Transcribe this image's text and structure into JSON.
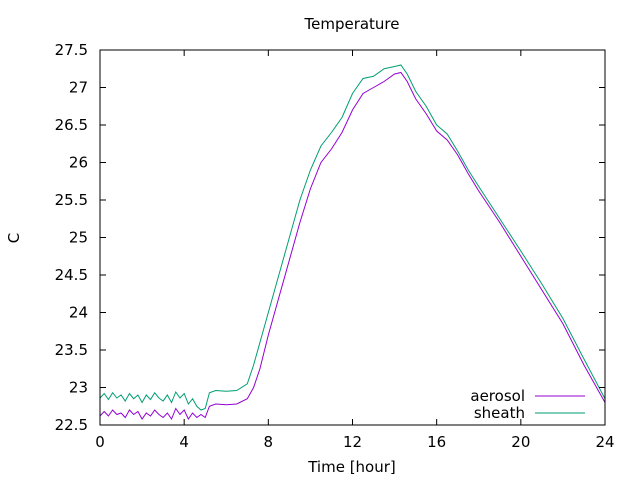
{
  "chart_data": {
    "type": "line",
    "title": "Temperature",
    "xlabel": "Time [hour]",
    "ylabel": "C",
    "xlim": [
      0,
      24
    ],
    "ylim": [
      22.5,
      27.5
    ],
    "xticks": [
      0,
      4,
      8,
      12,
      16,
      20,
      24
    ],
    "yticks": [
      22.5,
      23,
      23.5,
      24,
      24.5,
      25,
      25.5,
      26,
      26.5,
      27,
      27.5
    ],
    "xtick_labels": [
      "0",
      "4",
      "8",
      "12",
      "16",
      "20",
      "24"
    ],
    "ytick_labels": [
      "22.5",
      "23",
      "23.5",
      "24",
      "24.5",
      "25",
      "25.5",
      "26",
      "26.5",
      "27",
      "27.5"
    ],
    "grid": false,
    "legend": "bottom-right",
    "series": [
      {
        "name": "aerosol",
        "color": "#9400d3",
        "x": [
          0,
          0.2,
          0.4,
          0.6,
          0.8,
          1,
          1.2,
          1.4,
          1.6,
          1.8,
          2,
          2.2,
          2.4,
          2.6,
          2.8,
          3,
          3.2,
          3.4,
          3.6,
          3.8,
          4,
          4.2,
          4.4,
          4.6,
          4.8,
          5,
          5.2,
          5.5,
          6,
          6.5,
          7,
          7.3,
          7.6,
          8,
          8.5,
          9,
          9.5,
          10,
          10.5,
          11,
          11.5,
          12,
          12.5,
          13,
          13.5,
          14,
          14.3,
          14.6,
          15,
          15.5,
          16,
          16.5,
          17,
          17.5,
          18,
          19,
          20,
          21,
          22,
          23,
          24
        ],
        "y": [
          22.62,
          22.68,
          22.62,
          22.7,
          22.64,
          22.66,
          22.6,
          22.7,
          22.64,
          22.68,
          22.58,
          22.66,
          22.62,
          22.7,
          22.64,
          22.6,
          22.66,
          22.58,
          22.72,
          22.64,
          22.7,
          22.58,
          22.66,
          22.6,
          22.64,
          22.6,
          22.75,
          22.78,
          22.77,
          22.78,
          22.85,
          23.0,
          23.25,
          23.7,
          24.2,
          24.7,
          25.2,
          25.65,
          26.0,
          26.18,
          26.4,
          26.7,
          26.92,
          27.0,
          27.08,
          27.18,
          27.2,
          27.08,
          26.85,
          26.65,
          26.42,
          26.3,
          26.1,
          25.85,
          25.62,
          25.2,
          24.75,
          24.3,
          23.85,
          23.3,
          22.8
        ]
      },
      {
        "name": "sheath",
        "color": "#009e73",
        "x": [
          0,
          0.2,
          0.4,
          0.6,
          0.8,
          1,
          1.2,
          1.4,
          1.6,
          1.8,
          2,
          2.2,
          2.4,
          2.6,
          2.8,
          3,
          3.2,
          3.4,
          3.6,
          3.8,
          4,
          4.2,
          4.4,
          4.6,
          4.8,
          5,
          5.2,
          5.5,
          6,
          6.5,
          7,
          7.3,
          7.6,
          8,
          8.5,
          9,
          9.5,
          10,
          10.5,
          11,
          11.5,
          12,
          12.5,
          13,
          13.5,
          14,
          14.3,
          14.6,
          15,
          15.5,
          16,
          16.5,
          17,
          17.5,
          18,
          19,
          20,
          21,
          22,
          23,
          24
        ],
        "y": [
          22.86,
          22.92,
          22.84,
          22.93,
          22.86,
          22.9,
          22.82,
          22.92,
          22.85,
          22.9,
          22.8,
          22.9,
          22.84,
          22.93,
          22.86,
          22.82,
          22.9,
          22.8,
          22.94,
          22.86,
          22.92,
          22.78,
          22.85,
          22.75,
          22.7,
          22.72,
          22.93,
          22.96,
          22.95,
          22.96,
          23.05,
          23.3,
          23.6,
          24.0,
          24.5,
          25.0,
          25.5,
          25.9,
          26.22,
          26.4,
          26.6,
          26.92,
          27.12,
          27.15,
          27.25,
          27.28,
          27.3,
          27.18,
          26.95,
          26.75,
          26.5,
          26.38,
          26.15,
          25.9,
          25.68,
          25.25,
          24.82,
          24.38,
          23.92,
          23.38,
          22.85
        ]
      }
    ]
  }
}
